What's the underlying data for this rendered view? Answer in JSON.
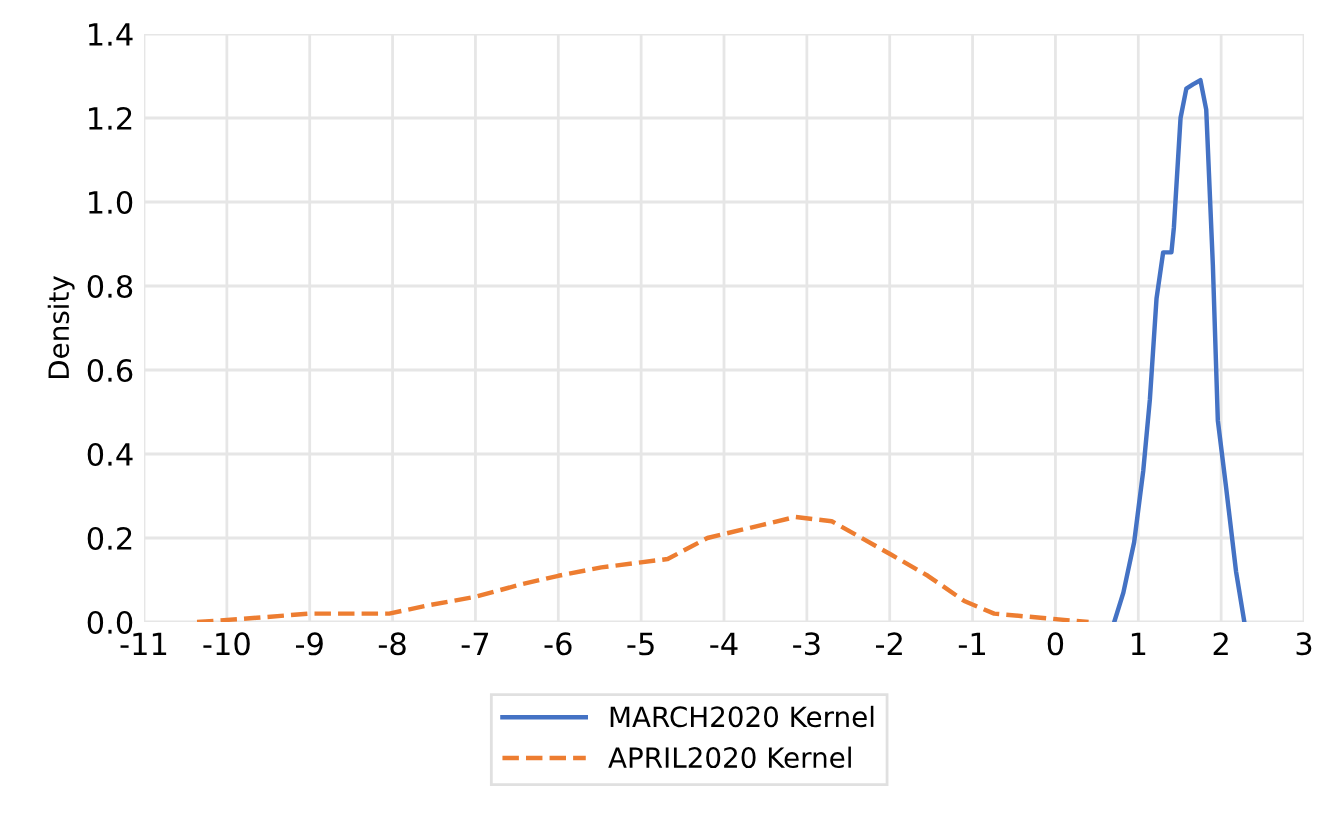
{
  "chart_data": {
    "type": "line",
    "ylabel": "Density",
    "xlim": [
      -11,
      3
    ],
    "xticks": [
      -11,
      -10,
      -9,
      -8,
      -7,
      -6,
      -5,
      -4,
      -3,
      -2,
      -1,
      0,
      1,
      2,
      3
    ],
    "ylim": [
      0,
      1.4
    ],
    "yticks": [
      {
        "value": 0,
        "label": "0.0"
      },
      {
        "value": 0.2,
        "label": "0.2"
      },
      {
        "value": 0.4,
        "label": "0.4"
      },
      {
        "value": 0.6,
        "label": "0.6"
      },
      {
        "value": 0.8,
        "label": "0.8"
      },
      {
        "value": 1.0,
        "label": "1.0"
      },
      {
        "value": 1.2,
        "label": "1.2"
      },
      {
        "value": 1.4,
        "label": "1.4"
      }
    ],
    "grid": true,
    "legend": "bottom",
    "series": [
      {
        "name": "MARCH2020 Kernel",
        "color": "#4472c4",
        "line_style": "solid",
        "x": [
          0.71,
          0.82,
          0.95,
          1.06,
          1.14,
          1.22,
          1.3,
          1.4,
          1.43,
          1.51,
          1.58,
          1.66,
          1.75,
          1.82,
          1.9,
          1.96,
          2.06,
          2.18,
          2.28
        ],
        "values": [
          0,
          0.07,
          0.19,
          0.36,
          0.53,
          0.77,
          0.88,
          0.88,
          0.94,
          1.2,
          1.27,
          1.28,
          1.29,
          1.22,
          0.85,
          0.48,
          0.32,
          0.12,
          0
        ]
      },
      {
        "name": "APRIL2020 Kernel",
        "color": "#ed7d31",
        "line_style": "dashed",
        "x": [
          -10.36,
          -9.64,
          -9.0,
          -8.04,
          -7.56,
          -7.0,
          -6.44,
          -6.0,
          -5.48,
          -4.68,
          -4.2,
          -3.99,
          -3.14,
          -2.7,
          -1.98,
          -1.54,
          -1.1,
          -0.74,
          -0.18,
          0.4
        ],
        "values": [
          0,
          0.01,
          0.02,
          0.02,
          0.04,
          0.06,
          0.09,
          0.11,
          0.13,
          0.15,
          0.2,
          0.21,
          0.25,
          0.24,
          0.16,
          0.11,
          0.05,
          0.02,
          0.01,
          0
        ]
      }
    ]
  }
}
